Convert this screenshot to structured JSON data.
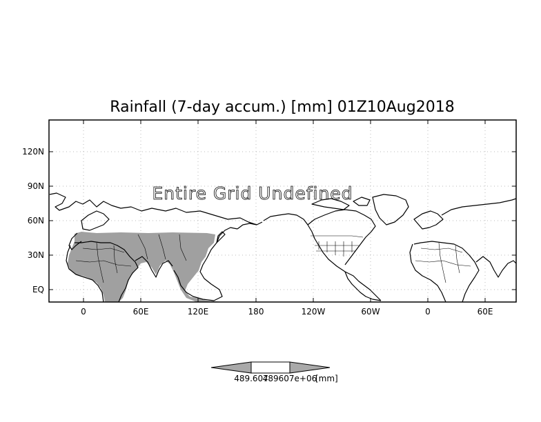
{
  "map": {
    "title": "Rainfall (7-day accum.) [mm] 01Z10Aug2018",
    "overlay_text": "Entire Grid Undefined",
    "lat_ticks": [
      "120N",
      "90N",
      "60N",
      "30N",
      "EQ"
    ],
    "lon_ticks": [
      "0",
      "60E",
      "120E",
      "180",
      "120W",
      "60W",
      "0",
      "60E"
    ],
    "land_color": "#a0a0a0",
    "grid_style": "dotted",
    "colorbar": {
      "min_label": "489.607",
      "max_label": "489607e+06",
      "unit_label": "[mm]",
      "arrow_color": "#a9a9a9",
      "center_color": "#ffffff"
    }
  }
}
